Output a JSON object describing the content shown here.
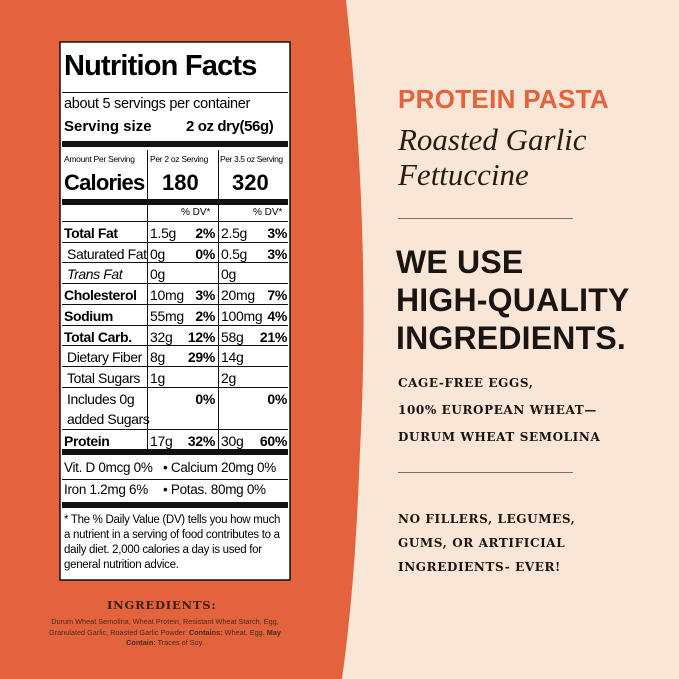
{
  "nutrition_facts": {
    "title": "Nutrition Facts",
    "servings": "about 5 servings per container",
    "serving_size_label": "Serving size",
    "serving_size": "2 oz dry(56g)",
    "amount_header": "Amount Per Serving",
    "col_headers": [
      "Per 2 oz Serving",
      "Per 3.5 oz Serving"
    ],
    "calories_label": "Calories",
    "calories": [
      180,
      320
    ],
    "dv_headers": [
      "% DV*",
      "% DV*"
    ],
    "rows": [
      {
        "label": "Total Fat",
        "bold": true,
        "amounts": [
          "1.5g",
          "2.5g"
        ],
        "dv": [
          "2%",
          "3%"
        ]
      },
      {
        "label": "Saturated Fat",
        "bold": false,
        "amounts": [
          "0g",
          "0.5g"
        ],
        "dv": [
          "0%",
          "3%"
        ]
      },
      {
        "label": "Trans Fat",
        "bold": false,
        "amounts": [
          "0g",
          "0g"
        ],
        "dv": [
          null,
          null
        ]
      },
      {
        "label": "Cholesterol",
        "bold": true,
        "amounts": [
          "10mg",
          "20mg"
        ],
        "dv": [
          "3%",
          "7%"
        ]
      },
      {
        "label": "Sodium",
        "bold": true,
        "amounts": [
          "55mg",
          "100mg"
        ],
        "dv": [
          "2%",
          "4%"
        ]
      },
      {
        "label": "Total Carb.",
        "bold": true,
        "amounts": [
          "32g",
          "58g"
        ],
        "dv": [
          "12%",
          "21%"
        ]
      },
      {
        "label": "Dietary Fiber",
        "bold": false,
        "amounts": [
          "8g",
          "14g"
        ],
        "dv": [
          "29%",
          null
        ]
      },
      {
        "label": "Total Sugars",
        "bold": false,
        "amounts": [
          "1g",
          "2g"
        ],
        "dv": [
          null,
          null
        ]
      },
      {
        "label": "Includes 0g added Sugars",
        "bold": false,
        "amounts": [
          null,
          null
        ],
        "dv": [
          "0%",
          "0%"
        ]
      },
      {
        "label": "Protein",
        "bold": true,
        "amounts": [
          "17g",
          "30g"
        ],
        "dv": [
          "32%",
          "60%"
        ]
      }
    ],
    "vitamins": [
      [
        "Vit. D 0mcg 0%",
        "• Calcium 20mg 0%"
      ],
      [
        "Iron 1.2mg 6%",
        "• Potas. 80mg 0%"
      ]
    ],
    "footnote": "* The % Daily Value (DV) tells you how much a nutrient in a serving of food contributes to a daily diet. 2,000 calories a day is used for general nutrition advice."
  },
  "ingredients": {
    "title": "INGREDIENTS:",
    "text": "Durum Wheat Semolina, Wheat Protein, Resistant Wheat Starch, Egg, Granulated Garlic, Roasted Garlic Powder.",
    "contains_label": "Contains:",
    "contains": "Wheat, Egg.",
    "may_contain_label": "May Contain:",
    "may_contain": "Traces of Soy."
  },
  "panel": {
    "brand": "PROTEIN PASTA",
    "product_lines": [
      "Roasted Garlic",
      "Fettuccine"
    ],
    "headline_lines": [
      "WE USE",
      "HIGH-QUALITY",
      "INGREDIENTS."
    ],
    "claims_1": [
      "CAGE-FREE EGGS,",
      "100% EUROPEAN WHEAT—",
      "DURUM WHEAT SEMOLINA"
    ],
    "claims_2": [
      "NO FILLERS, LEGUMES,",
      "GUMS, OR ARTIFICIAL",
      "INGREDIENTS- EVER!"
    ]
  }
}
